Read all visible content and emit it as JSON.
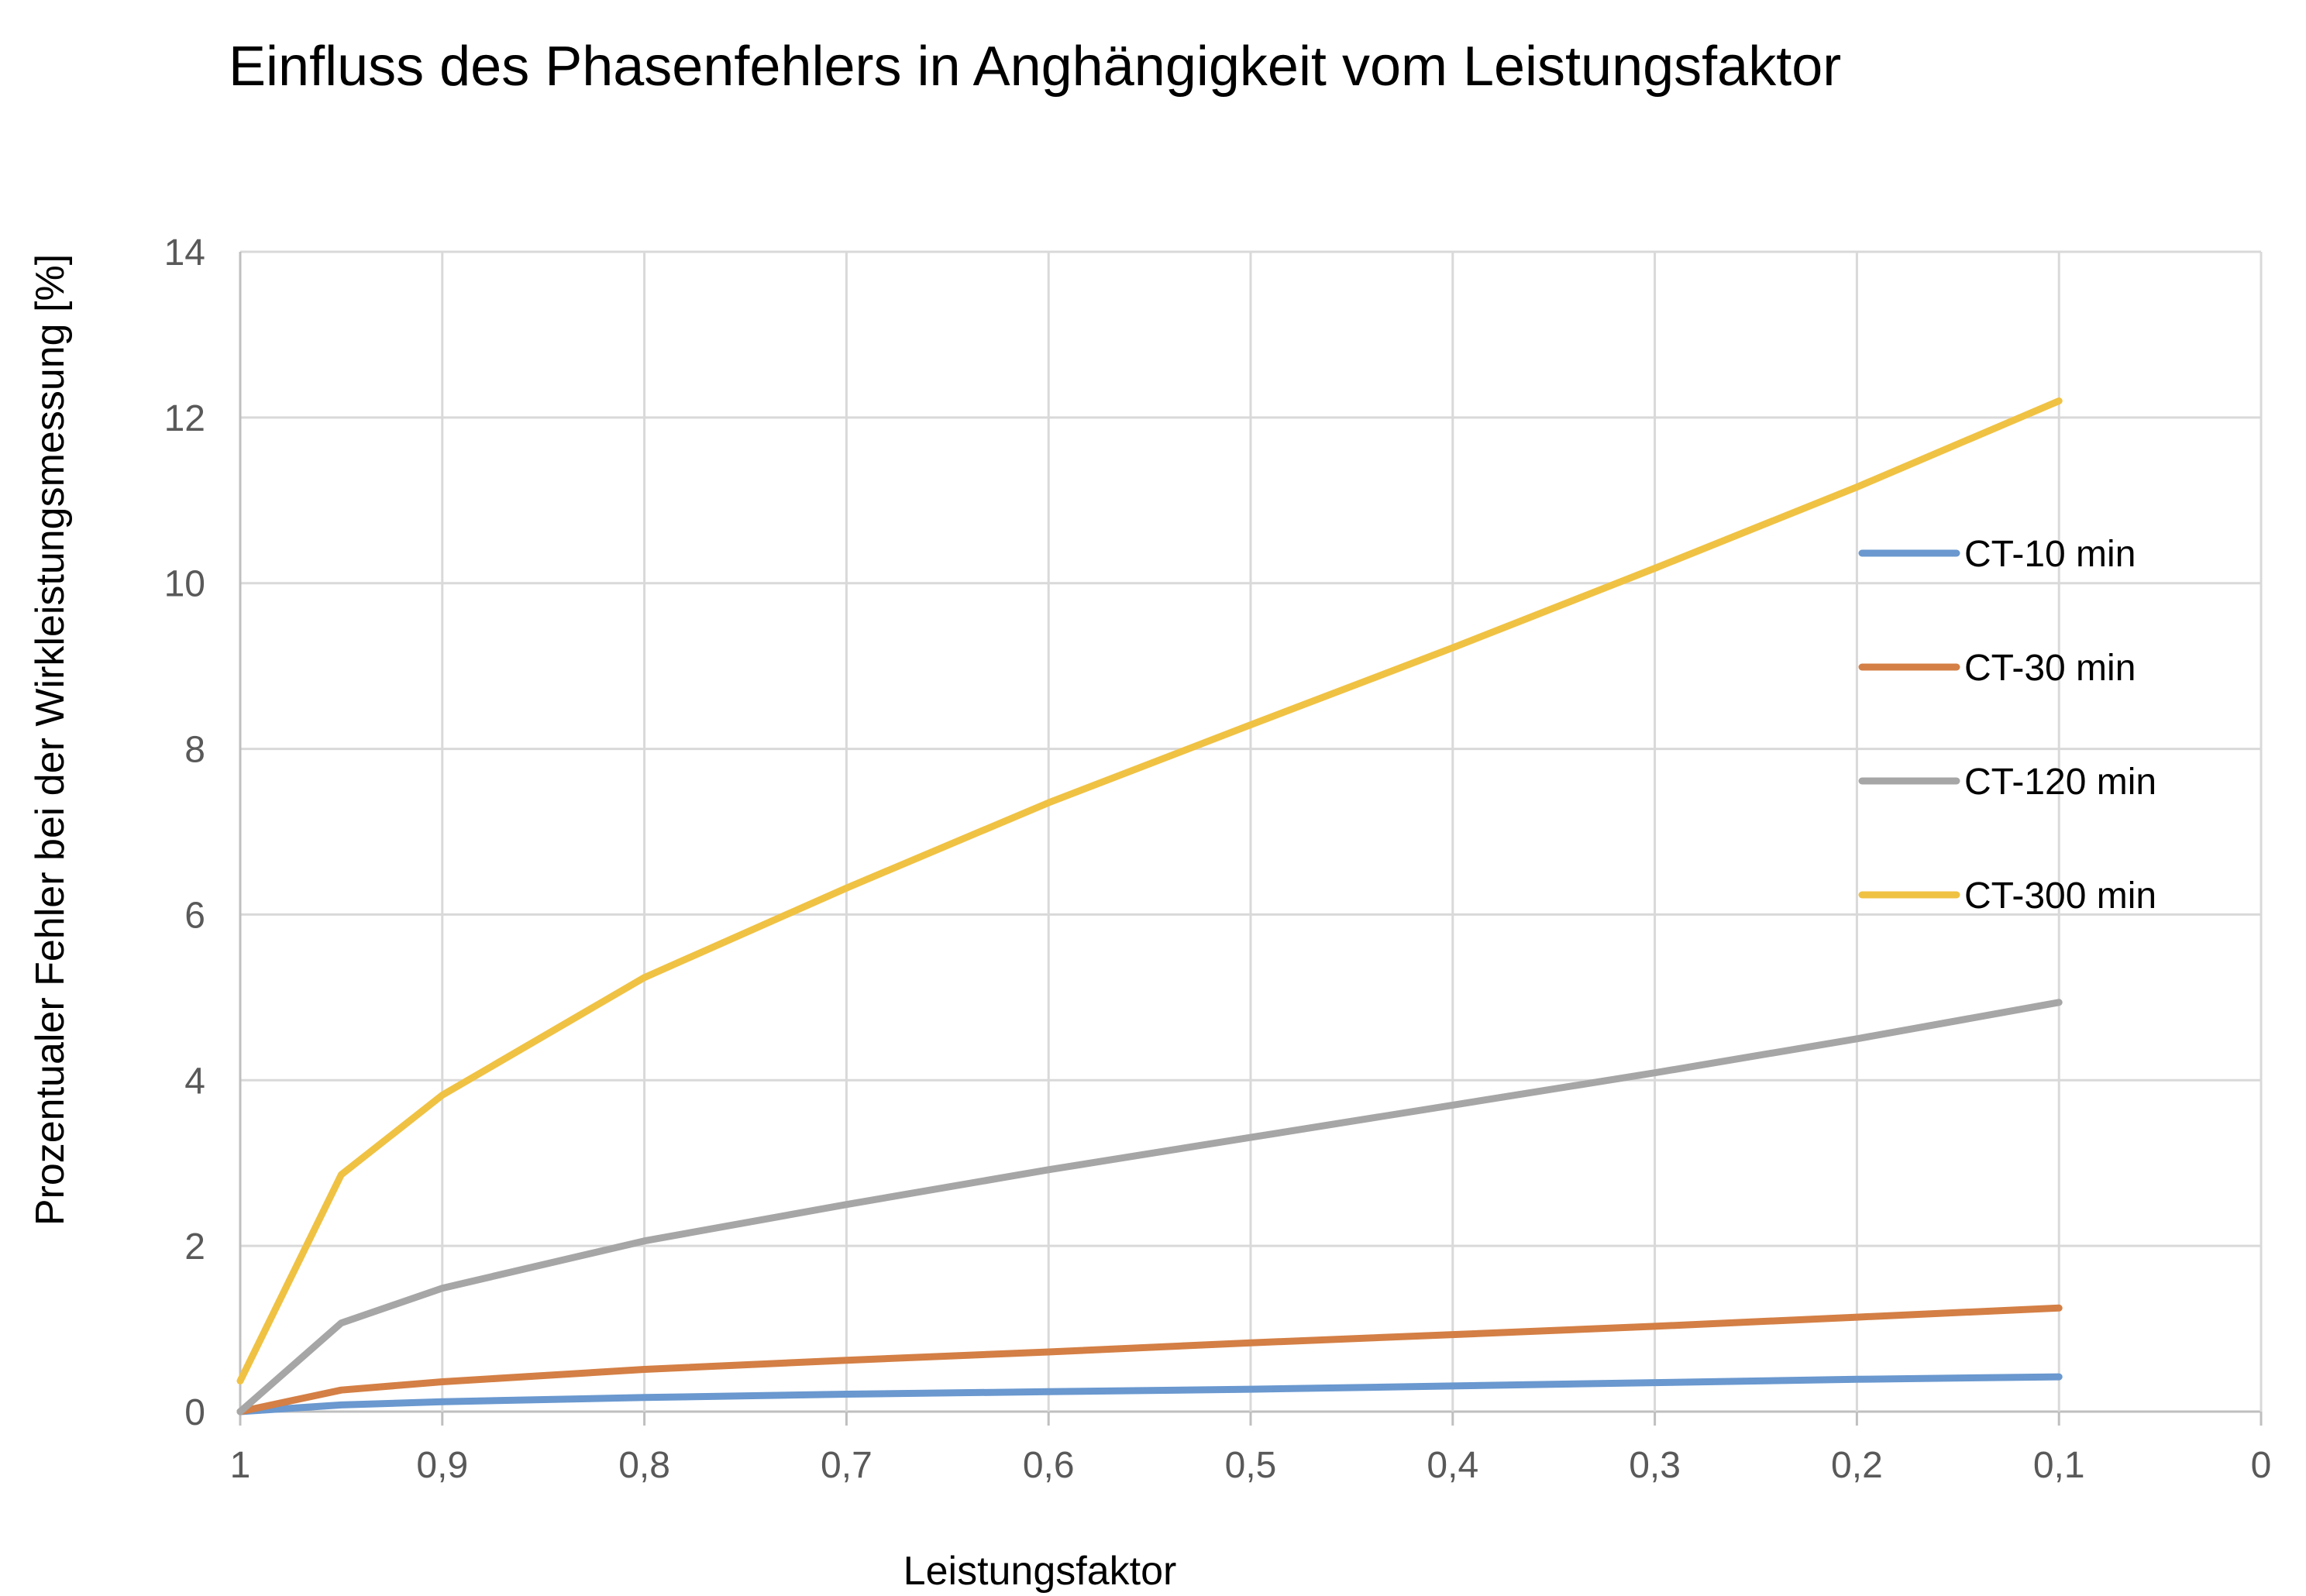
{
  "chart_data": {
    "type": "line",
    "title": "Einfluss des Phasenfehlers in Anghängigkeit vom Leistungsfaktor",
    "xlabel": "Leistungsfaktor",
    "ylabel": "Prozentualer Fehler bei der Wirkleistungsmessung [%]",
    "x_reversed": true,
    "xlim": [
      1,
      0
    ],
    "ylim": [
      0,
      14
    ],
    "x_ticks": [
      1,
      0.9,
      0.8,
      0.7,
      0.6,
      0.5,
      0.4,
      0.3,
      0.2,
      0.1,
      0
    ],
    "x_tick_labels": [
      "1",
      "0,9",
      "0,8",
      "0,7",
      "0,6",
      "0,5",
      "0,4",
      "0,3",
      "0,2",
      "0,1",
      "0"
    ],
    "y_ticks": [
      0,
      2,
      4,
      6,
      8,
      10,
      12,
      14
    ],
    "y_tick_labels": [
      "0",
      "2",
      "4",
      "6",
      "8",
      "10",
      "12",
      "14"
    ],
    "grid": true,
    "legend_position": "right",
    "x": [
      1,
      0.95,
      0.9,
      0.8,
      0.7,
      0.6,
      0.5,
      0.4,
      0.3,
      0.2,
      0.1
    ],
    "series": [
      {
        "name": "CT-10 min",
        "color": "#6a98cf",
        "values": [
          0,
          0.08,
          0.12,
          0.17,
          0.21,
          0.24,
          0.27,
          0.31,
          0.35,
          0.39,
          0.42
        ]
      },
      {
        "name": "CT-30 min",
        "color": "#d47f45",
        "values": [
          0,
          0.26,
          0.36,
          0.51,
          0.62,
          0.72,
          0.83,
          0.93,
          1.03,
          1.14,
          1.25
        ]
      },
      {
        "name": "CT-120 min",
        "color": "#a6a6a6",
        "values": [
          0,
          1.07,
          1.49,
          2.06,
          2.5,
          2.92,
          3.31,
          3.7,
          4.09,
          4.5,
          4.94
        ]
      },
      {
        "name": "CT-300 min",
        "color": "#f0c243",
        "values": [
          0.37,
          2.86,
          3.82,
          5.24,
          6.32,
          7.35,
          8.29,
          9.22,
          10.18,
          11.16,
          12.2
        ]
      }
    ]
  }
}
